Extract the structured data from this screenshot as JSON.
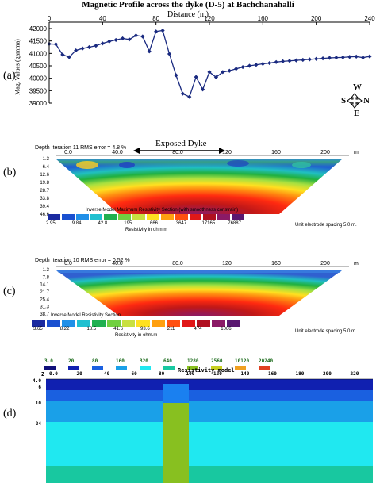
{
  "title": "Magnetic Profile across the dyke (D-5) at Bachchanahalli",
  "panel_a": {
    "label": "(a)",
    "compass": {
      "n": "N",
      "s": "S",
      "e": "E",
      "w": "W"
    }
  },
  "panel_b": {
    "label": "(b)",
    "header": "Depth   Iteration 11 RMS error = 4.8 %",
    "annotation": "Exposed Dyke",
    "x_ticks": [
      "0.0",
      "40.0",
      "80.0",
      "120",
      "160",
      "200"
    ],
    "x_unit": "m",
    "depth_ticks": [
      "1.3",
      "6.4",
      "12.6",
      "19.8",
      "28.7",
      "33.8",
      "39.4",
      "46.6"
    ],
    "section_title": "Inverse Model Maximum Resistivity Section (with smoothness constrain)",
    "scale_values": [
      "2.95",
      "9.84",
      "42.8",
      "195",
      "666",
      "3647",
      "17165",
      "76887"
    ],
    "scale_label": "Resistivity in ohm.m",
    "spacing": "Unit electrode spacing 5.0 m."
  },
  "panel_c": {
    "label": "(c)",
    "header": "Depth   Iteration 10 RMS error = 0.52 %",
    "x_ticks": [
      "0.0",
      "40.0",
      "80.0",
      "120",
      "160",
      "200"
    ],
    "x_unit": "m",
    "depth_ticks": [
      "1.3",
      "7.8",
      "14.1",
      "21.7",
      "25.4",
      "31.3",
      "38.7"
    ],
    "section_title": "Inverse Model Resistivity Section",
    "scale_values": [
      "3.65",
      "8.22",
      "18.5",
      "41.6",
      "93.6",
      "211",
      "474",
      "1066"
    ],
    "scale_label": "Resistivity in ohm.m",
    "spacing": "Unit electrode spacing 5.0 m."
  },
  "panel_d": {
    "label": "(d)",
    "legend_values": [
      "3.0",
      "20",
      "80",
      "160",
      "320",
      "640",
      "1280",
      "2560",
      "10120",
      "20240"
    ],
    "axis_header": "Z",
    "x_ticks": [
      "0.0",
      "20",
      "40",
      "60",
      "80",
      "100",
      "120",
      "140",
      "160",
      "180",
      "200",
      "220"
    ],
    "depth_ticks": [
      "4.0",
      "6",
      "10",
      "24"
    ],
    "model_label": "Resistivity model"
  },
  "chart_data": {
    "type": "line",
    "title": "Magnetic Profile across the dyke (D-5) at Bachchanahalli",
    "xlabel": "Distance (m)",
    "ylabel": "Mag. Values (gamma)",
    "xlim": [
      0,
      240
    ],
    "ylim": [
      39000,
      42000
    ],
    "x_ticks": [
      0,
      40,
      80,
      120,
      160,
      200,
      240
    ],
    "y_ticks": [
      39000,
      39500,
      40000,
      40500,
      41000,
      41500,
      42000
    ],
    "x": [
      0,
      5,
      10,
      15,
      20,
      25,
      30,
      35,
      40,
      45,
      50,
      55,
      60,
      65,
      70,
      75,
      80,
      85,
      90,
      95,
      100,
      105,
      110,
      115,
      120,
      125,
      130,
      135,
      140,
      145,
      150,
      155,
      160,
      165,
      170,
      175,
      180,
      185,
      190,
      195,
      200,
      205,
      210,
      215,
      220,
      225,
      230,
      235,
      240
    ],
    "y": [
      41380,
      41370,
      40950,
      40850,
      41120,
      41200,
      41250,
      41310,
      41400,
      41480,
      41540,
      41600,
      41560,
      41720,
      41680,
      41080,
      41880,
      41920,
      40980,
      40120,
      39380,
      39250,
      40050,
      39550,
      40250,
      40040,
      40250,
      40300,
      40380,
      40450,
      40500,
      40540,
      40580,
      40610,
      40650,
      40680,
      40700,
      40720,
      40740,
      40760,
      40780,
      40800,
      40820,
      40830,
      40840,
      40860,
      40870,
      40830,
      40880
    ]
  }
}
